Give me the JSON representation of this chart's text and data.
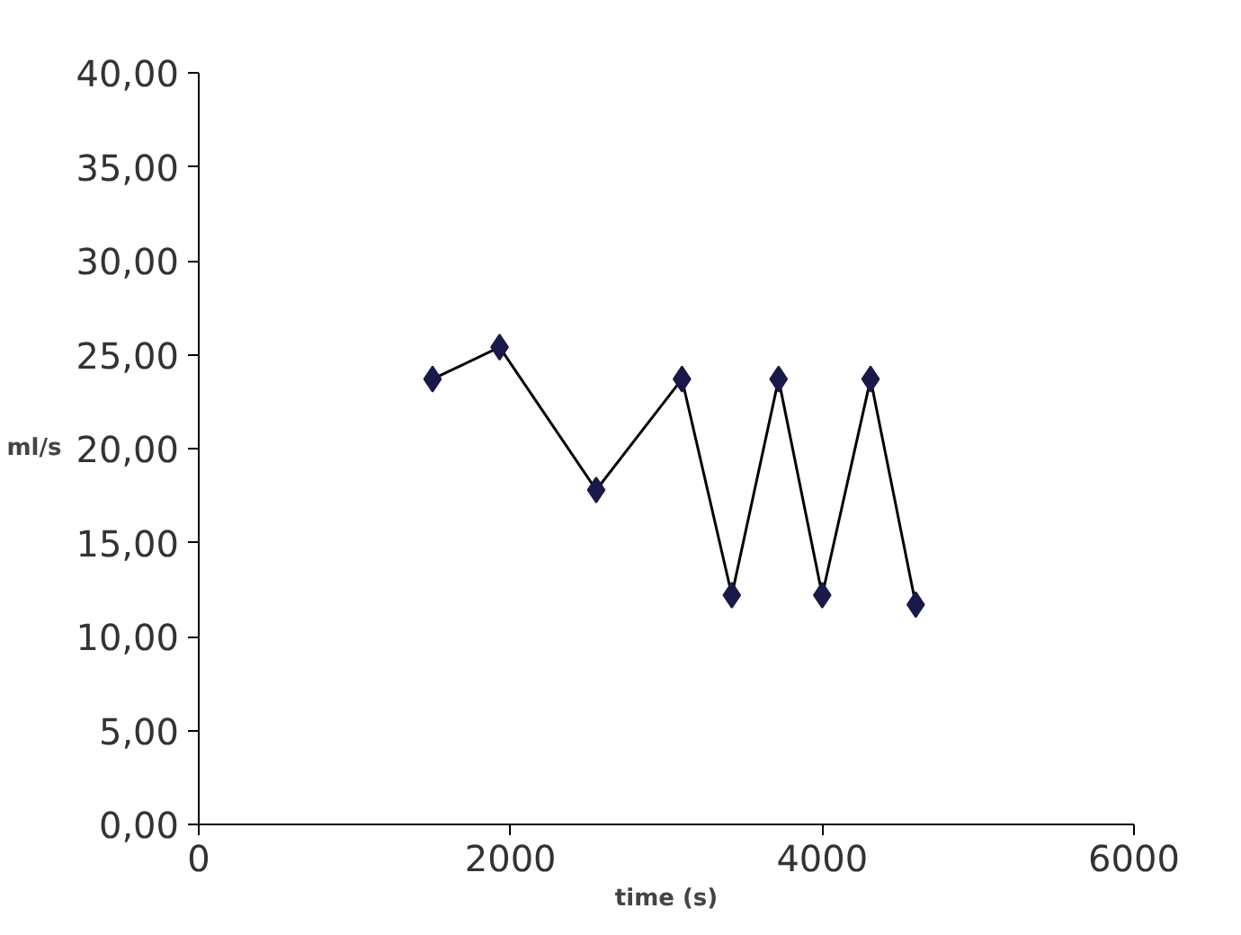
{
  "chart_data": {
    "type": "line",
    "xlabel": "time (s)",
    "ylabel": "ml/s",
    "x": [
      1500,
      1930,
      2550,
      3100,
      3420,
      3720,
      4000,
      4310,
      4600
    ],
    "series": [
      {
        "color": "#1a1a4a",
        "values": [
          23.7,
          25.4,
          17.8,
          23.7,
          12.2,
          23.7,
          12.2,
          23.7,
          11.7
        ]
      }
    ],
    "xlim": [
      0,
      6000
    ],
    "ylim": [
      0,
      40
    ],
    "xticks": [
      0,
      2000,
      4000,
      6000
    ],
    "yticks": [
      {
        "value": 0,
        "label": "0,00"
      },
      {
        "value": 5,
        "label": "5,00"
      },
      {
        "value": 10,
        "label": "10,00"
      },
      {
        "value": 15,
        "label": "15,00"
      },
      {
        "value": 20,
        "label": "20,00"
      },
      {
        "value": 25,
        "label": "25,00"
      },
      {
        "value": 30,
        "label": "30,00"
      },
      {
        "value": 35,
        "label": "35,00"
      },
      {
        "value": 40,
        "label": "40,00"
      }
    ],
    "grid": false,
    "marker": "diamond",
    "line_style": "solid"
  }
}
